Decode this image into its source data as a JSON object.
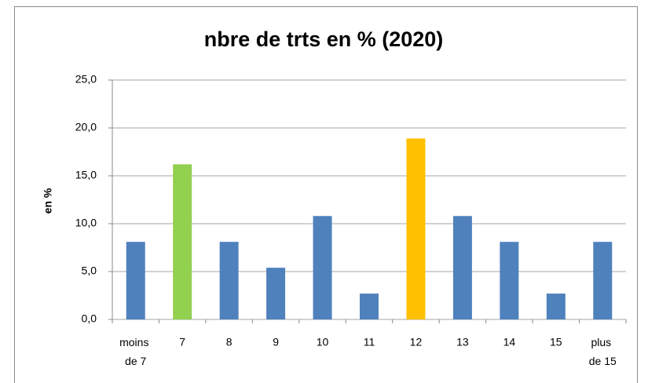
{
  "chart_data": {
    "type": "bar",
    "title": "nbre de trts en % (2020)",
    "y_label": "en %",
    "categories": [
      "moins de 7",
      "7",
      "8",
      "9",
      "10",
      "11",
      "12",
      "13",
      "14",
      "15",
      "plus de 15"
    ],
    "values": [
      8.1,
      16.2,
      8.1,
      5.4,
      10.8,
      2.7,
      18.9,
      10.8,
      8.1,
      2.7,
      8.1
    ],
    "colors": [
      "#4f81bd",
      "#92d050",
      "#4f81bd",
      "#4f81bd",
      "#4f81bd",
      "#4f81bd",
      "#ffc000",
      "#4f81bd",
      "#4f81bd",
      "#4f81bd",
      "#4f81bd"
    ],
    "ylim": [
      0,
      25
    ],
    "yticks": [
      {
        "value": 0,
        "label": "0,0"
      },
      {
        "value": 5,
        "label": "5,0"
      },
      {
        "value": 10,
        "label": "10,0"
      },
      {
        "value": 15,
        "label": "15,0"
      },
      {
        "value": 20,
        "label": "20,0"
      },
      {
        "value": 25,
        "label": "25,0"
      }
    ],
    "grid": true
  }
}
